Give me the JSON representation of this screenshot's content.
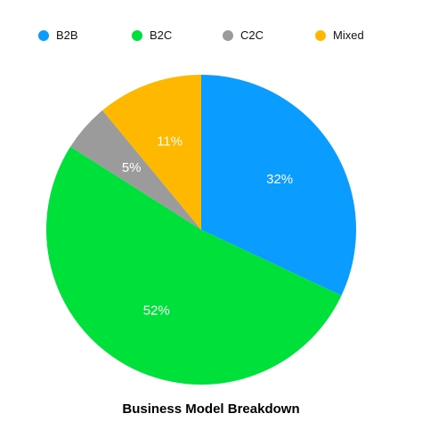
{
  "chart_data": {
    "type": "pie",
    "title": "Business Model Breakdown",
    "legend_position": "top",
    "slices": [
      {
        "name": "B2B",
        "value": 32,
        "label": "32%",
        "color": "#0a9cff"
      },
      {
        "name": "B2C",
        "value": 52,
        "label": "52%",
        "color": "#00e03a"
      },
      {
        "name": "C2C",
        "value": 5,
        "label": "5%",
        "color": "#9b9b9b"
      },
      {
        "name": "Mixed",
        "value": 11,
        "label": "11%",
        "color": "#ffb800"
      }
    ]
  }
}
